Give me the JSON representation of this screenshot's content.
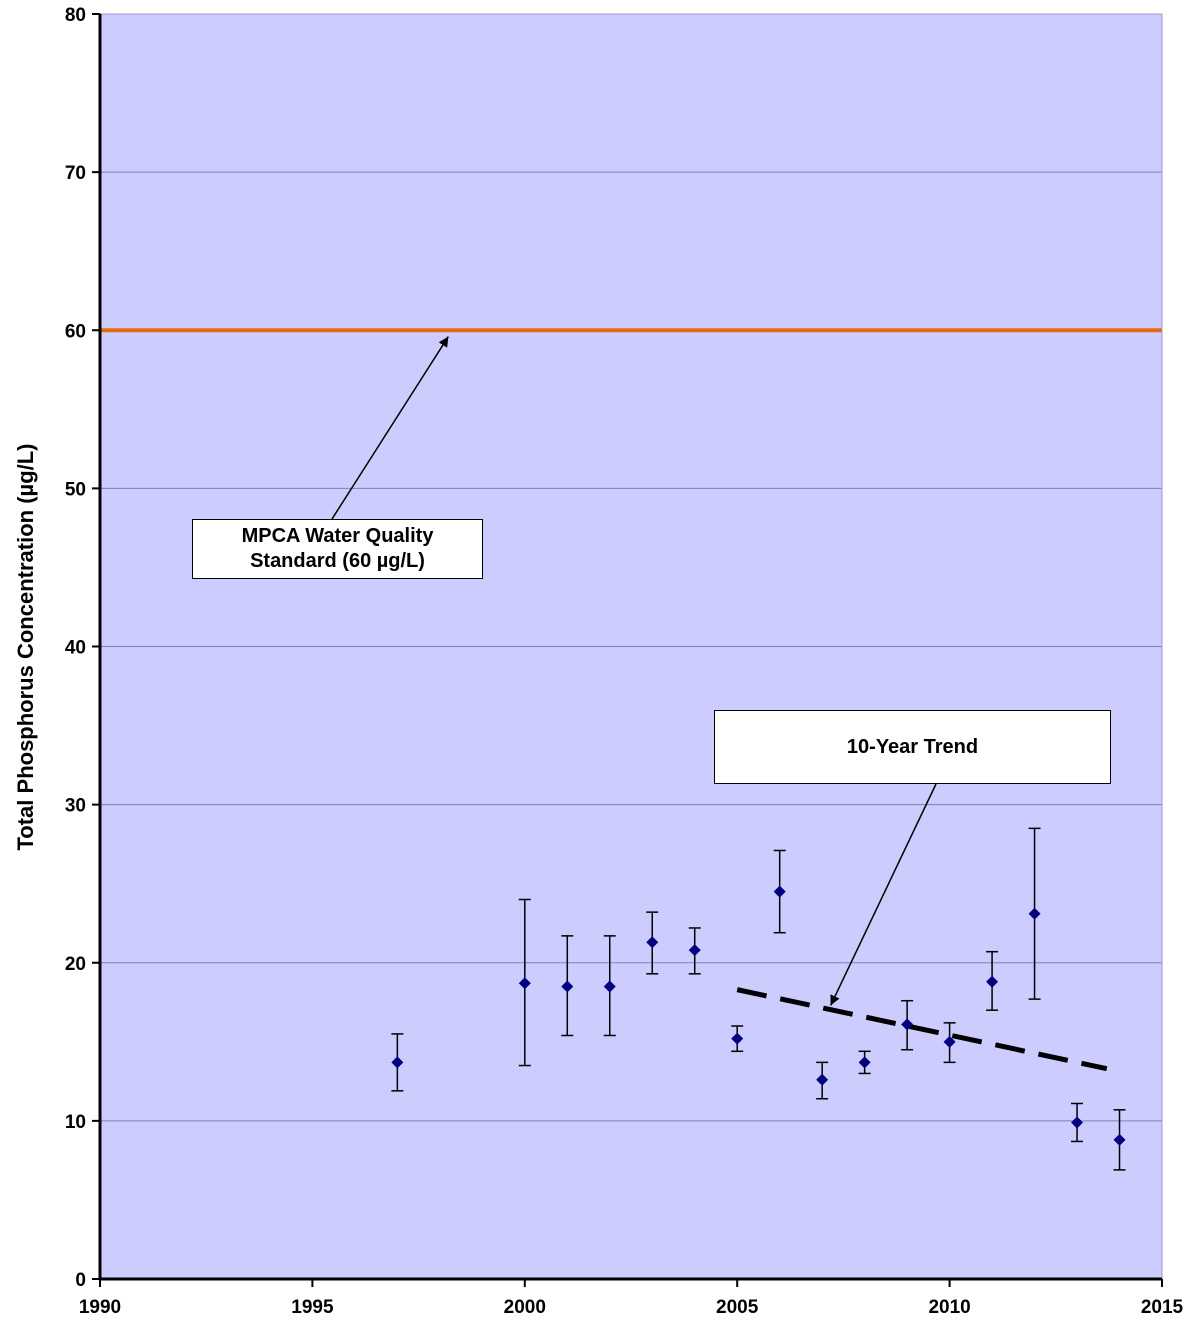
{
  "chart_data": {
    "type": "scatter",
    "title": "",
    "xlabel": "",
    "ylabel": "Total Phosphorus Concentration (µg/L)",
    "xlim": [
      1990,
      2015
    ],
    "ylim": [
      0,
      80
    ],
    "x_ticks": [
      1990,
      1995,
      2000,
      2005,
      2010,
      2015
    ],
    "y_ticks": [
      0,
      10,
      20,
      30,
      40,
      50,
      60,
      70,
      80
    ],
    "grid": "horizontal",
    "colors": {
      "plot_area": "#ccccff",
      "marker": "#000080",
      "standard_line": "#e36c0a",
      "trend_line": "#000000"
    },
    "points": [
      {
        "x": 1997,
        "y": 13.7,
        "low": 11.9,
        "high": 15.5
      },
      {
        "x": 2000,
        "y": 18.7,
        "low": 13.5,
        "high": 24.0
      },
      {
        "x": 2001,
        "y": 18.5,
        "low": 15.4,
        "high": 21.7
      },
      {
        "x": 2002,
        "y": 18.5,
        "low": 15.4,
        "high": 21.7
      },
      {
        "x": 2003,
        "y": 21.3,
        "low": 19.3,
        "high": 23.2
      },
      {
        "x": 2004,
        "y": 20.8,
        "low": 19.3,
        "high": 22.2
      },
      {
        "x": 2005,
        "y": 15.2,
        "low": 14.4,
        "high": 16.0
      },
      {
        "x": 2006,
        "y": 24.5,
        "low": 21.9,
        "high": 27.1
      },
      {
        "x": 2007,
        "y": 12.6,
        "low": 11.4,
        "high": 13.7
      },
      {
        "x": 2008,
        "y": 13.7,
        "low": 13.0,
        "high": 14.4
      },
      {
        "x": 2009,
        "y": 16.1,
        "low": 14.5,
        "high": 17.6
      },
      {
        "x": 2010,
        "y": 15.0,
        "low": 13.7,
        "high": 16.2
      },
      {
        "x": 2011,
        "y": 18.8,
        "low": 17.0,
        "high": 20.7
      },
      {
        "x": 2012,
        "y": 23.1,
        "low": 17.7,
        "high": 28.5
      },
      {
        "x": 2013,
        "y": 9.9,
        "low": 8.7,
        "high": 11.1
      },
      {
        "x": 2014,
        "y": 8.8,
        "low": 6.9,
        "high": 10.7
      }
    ],
    "standard_line": {
      "y": 60
    },
    "trend_line": {
      "x": [
        2005,
        2013.7
      ],
      "y": [
        18.3,
        13.3
      ]
    },
    "annotations": [
      {
        "id": "standard",
        "text_lines": [
          "MPCA Water Quality",
          "Standard (60 µg/L)"
        ],
        "arrow_to": {
          "x": 1998.2,
          "y": 59.6
        }
      },
      {
        "id": "trend",
        "text_lines": [
          "10-Year Trend"
        ],
        "arrow_to": {
          "x": 2007.2,
          "y": 17.3
        }
      }
    ]
  }
}
